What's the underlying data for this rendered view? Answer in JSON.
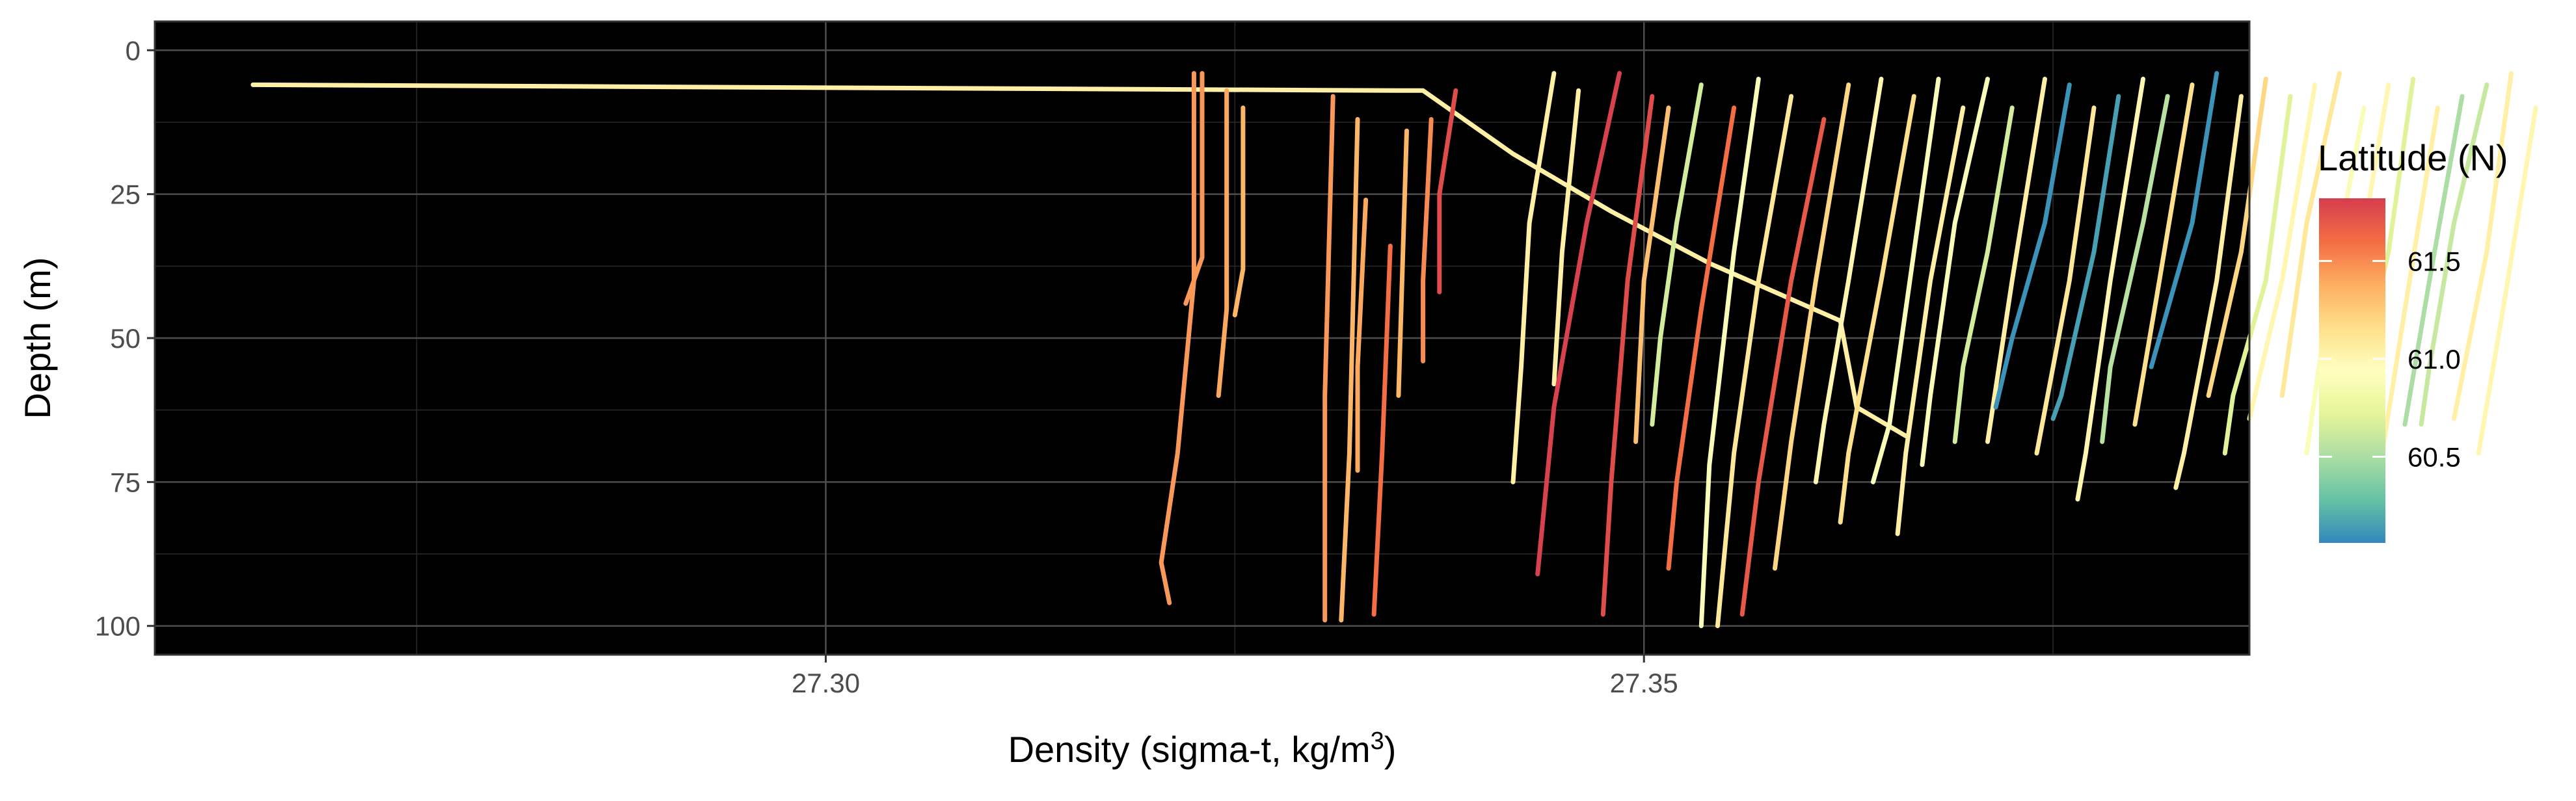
{
  "chart_data": {
    "type": "line",
    "xlabel": "Density (sigma-t, kg/m",
    "xlabel_superscript": "3",
    "xlabel_suffix": ")",
    "ylabel": "Depth (m)",
    "x_ticks": [
      "27.30",
      "27.35"
    ],
    "y_ticks": [
      "0",
      "25",
      "50",
      "75",
      "100"
    ],
    "xlim": [
      27.259,
      27.387
    ],
    "ylim": [
      105,
      -5
    ],
    "y_reversed": true,
    "background": "#000000",
    "grid": true,
    "legend": {
      "title": "Latitude (N)",
      "position": "right",
      "ticks": [
        "61.5",
        "61.0",
        "60.5"
      ],
      "tick_values": [
        61.5,
        61.0,
        60.5
      ],
      "range": [
        60.06,
        61.82
      ],
      "colors": [
        "#3288BD",
        "#66C2A5",
        "#ABDDA4",
        "#E6F598",
        "#FFFFBF",
        "#FEE08B",
        "#FDAE61",
        "#F46D43",
        "#D53E4F"
      ]
    },
    "series": [
      {
        "lat": 61.05,
        "points": [
          [
            27.265,
            6
          ],
          [
            27.335,
            7
          ],
          [
            27.3365,
            7
          ],
          [
            27.342,
            18
          ],
          [
            27.348,
            28
          ],
          [
            27.354,
            37
          ],
          [
            27.362,
            47
          ],
          [
            27.363,
            62
          ],
          [
            27.366,
            67
          ]
        ]
      },
      {
        "lat": 61.45,
        "points": [
          [
            27.3225,
            4
          ],
          [
            27.3225,
            40
          ],
          [
            27.3215,
            70
          ],
          [
            27.3205,
            89
          ],
          [
            27.321,
            96
          ]
        ]
      },
      {
        "lat": 61.45,
        "points": [
          [
            27.323,
            4
          ],
          [
            27.323,
            36
          ],
          [
            27.322,
            44
          ]
        ]
      },
      {
        "lat": 61.4,
        "points": [
          [
            27.3245,
            7
          ],
          [
            27.3245,
            45
          ],
          [
            27.324,
            60
          ]
        ]
      },
      {
        "lat": 61.35,
        "points": [
          [
            27.3255,
            10
          ],
          [
            27.3255,
            38
          ],
          [
            27.325,
            46
          ]
        ]
      },
      {
        "lat": 61.45,
        "points": [
          [
            27.331,
            8
          ],
          [
            27.3305,
            60
          ],
          [
            27.3305,
            99
          ]
        ]
      },
      {
        "lat": 61.35,
        "points": [
          [
            27.3325,
            12
          ],
          [
            27.332,
            70
          ],
          [
            27.3315,
            99
          ]
        ]
      },
      {
        "lat": 61.4,
        "points": [
          [
            27.333,
            26
          ],
          [
            27.3325,
            55
          ],
          [
            27.3325,
            73
          ]
        ]
      },
      {
        "lat": 61.6,
        "points": [
          [
            27.3345,
            34
          ],
          [
            27.334,
            70
          ],
          [
            27.3335,
            98
          ]
        ]
      },
      {
        "lat": 61.35,
        "points": [
          [
            27.3355,
            14
          ],
          [
            27.335,
            60
          ]
        ]
      },
      {
        "lat": 61.5,
        "points": [
          [
            27.337,
            12
          ],
          [
            27.3365,
            40
          ],
          [
            27.3365,
            54
          ]
        ]
      },
      {
        "lat": 61.75,
        "points": [
          [
            27.3385,
            7
          ],
          [
            27.3375,
            25
          ],
          [
            27.3375,
            42
          ]
        ]
      },
      {
        "lat": 61.05,
        "points": [
          [
            27.3445,
            4
          ],
          [
            27.343,
            30
          ],
          [
            27.3425,
            55
          ],
          [
            27.342,
            75
          ]
        ]
      },
      {
        "lat": 61.05,
        "points": [
          [
            27.346,
            7
          ],
          [
            27.345,
            35
          ],
          [
            27.3445,
            58
          ]
        ]
      },
      {
        "lat": 61.8,
        "points": [
          [
            27.3485,
            4
          ],
          [
            27.3465,
            30
          ],
          [
            27.3445,
            62
          ],
          [
            27.3435,
            91
          ]
        ]
      },
      {
        "lat": 61.75,
        "points": [
          [
            27.3505,
            8
          ],
          [
            27.349,
            40
          ],
          [
            27.348,
            75
          ],
          [
            27.3475,
            98
          ]
        ]
      },
      {
        "lat": 61.3,
        "points": [
          [
            27.3515,
            10
          ],
          [
            27.35,
            40
          ],
          [
            27.3495,
            68
          ]
        ]
      },
      {
        "lat": 60.65,
        "points": [
          [
            27.3535,
            6
          ],
          [
            27.352,
            30
          ],
          [
            27.351,
            50
          ],
          [
            27.3505,
            65
          ]
        ]
      },
      {
        "lat": 61.6,
        "points": [
          [
            27.3555,
            10
          ],
          [
            27.3535,
            45
          ],
          [
            27.352,
            75
          ],
          [
            27.3515,
            90
          ]
        ]
      },
      {
        "lat": 60.9,
        "points": [
          [
            27.357,
            5
          ],
          [
            27.3555,
            35
          ],
          [
            27.354,
            72
          ],
          [
            27.3535,
            100
          ]
        ]
      },
      {
        "lat": 61.1,
        "points": [
          [
            27.359,
            8
          ],
          [
            27.357,
            40
          ],
          [
            27.3555,
            70
          ],
          [
            27.3545,
            100
          ]
        ]
      },
      {
        "lat": 61.7,
        "points": [
          [
            27.361,
            12
          ],
          [
            27.359,
            40
          ],
          [
            27.357,
            75
          ],
          [
            27.356,
            98
          ]
        ]
      },
      {
        "lat": 61.2,
        "points": [
          [
            27.3625,
            6
          ],
          [
            27.3605,
            40
          ],
          [
            27.359,
            68
          ],
          [
            27.358,
            90
          ]
        ]
      },
      {
        "lat": 61.0,
        "points": [
          [
            27.3645,
            5
          ],
          [
            27.3625,
            40
          ],
          [
            27.361,
            65
          ],
          [
            27.3605,
            75
          ]
        ]
      },
      {
        "lat": 61.15,
        "points": [
          [
            27.3665,
            8
          ],
          [
            27.3645,
            40
          ],
          [
            27.3625,
            70
          ],
          [
            27.362,
            82
          ]
        ]
      },
      {
        "lat": 60.9,
        "points": [
          [
            27.368,
            5
          ],
          [
            27.3665,
            35
          ],
          [
            27.365,
            65
          ],
          [
            27.364,
            75
          ]
        ]
      },
      {
        "lat": 61.05,
        "points": [
          [
            27.3695,
            10
          ],
          [
            27.3675,
            40
          ],
          [
            27.366,
            70
          ],
          [
            27.3655,
            84
          ]
        ]
      },
      {
        "lat": 60.9,
        "points": [
          [
            27.371,
            5
          ],
          [
            27.369,
            30
          ],
          [
            27.3675,
            60
          ],
          [
            27.367,
            72
          ]
        ]
      },
      {
        "lat": 60.65,
        "points": [
          [
            27.3725,
            10
          ],
          [
            27.371,
            35
          ],
          [
            27.3695,
            55
          ],
          [
            27.369,
            68
          ]
        ]
      },
      {
        "lat": 61.05,
        "points": [
          [
            27.3745,
            5
          ],
          [
            27.3725,
            40
          ],
          [
            27.371,
            68
          ]
        ]
      },
      {
        "lat": 60.1,
        "points": [
          [
            27.376,
            6
          ],
          [
            27.3745,
            30
          ],
          [
            27.3725,
            50
          ],
          [
            27.3715,
            62
          ]
        ]
      },
      {
        "lat": 61.1,
        "points": [
          [
            27.3775,
            10
          ],
          [
            27.376,
            40
          ],
          [
            27.374,
            70
          ]
        ]
      },
      {
        "lat": 60.15,
        "points": [
          [
            27.379,
            8
          ],
          [
            27.3775,
            35
          ],
          [
            27.3755,
            60
          ],
          [
            27.375,
            64
          ]
        ]
      },
      {
        "lat": 61.0,
        "points": [
          [
            27.3805,
            5
          ],
          [
            27.3785,
            40
          ],
          [
            27.377,
            70
          ],
          [
            27.3765,
            78
          ]
        ]
      },
      {
        "lat": 60.55,
        "points": [
          [
            27.382,
            8
          ],
          [
            27.3805,
            30
          ],
          [
            27.3785,
            55
          ],
          [
            27.378,
            68
          ]
        ]
      },
      {
        "lat": 61.15,
        "points": [
          [
            27.3835,
            6
          ],
          [
            27.3815,
            40
          ],
          [
            27.38,
            65
          ]
        ]
      },
      {
        "lat": 60.1,
        "points": [
          [
            27.385,
            4
          ],
          [
            27.3835,
            30
          ],
          [
            27.3815,
            50
          ],
          [
            27.381,
            55
          ]
        ]
      },
      {
        "lat": 61.05,
        "points": [
          [
            27.3865,
            8
          ],
          [
            27.385,
            40
          ],
          [
            27.383,
            70
          ],
          [
            27.3825,
            76
          ]
        ]
      },
      {
        "lat": 61.2,
        "points": [
          [
            27.388,
            5
          ],
          [
            27.3865,
            35
          ],
          [
            27.3845,
            60
          ]
        ]
      },
      {
        "lat": 60.7,
        "points": [
          [
            27.3895,
            8
          ],
          [
            27.388,
            40
          ],
          [
            27.386,
            60
          ],
          [
            27.3855,
            70
          ]
        ]
      },
      {
        "lat": 61.0,
        "points": [
          [
            27.391,
            6
          ],
          [
            27.389,
            40
          ],
          [
            27.387,
            64
          ]
        ]
      },
      {
        "lat": 61.1,
        "points": [
          [
            27.3925,
            4
          ],
          [
            27.3905,
            30
          ],
          [
            27.389,
            60
          ]
        ]
      },
      {
        "lat": 60.9,
        "points": [
          [
            27.394,
            10
          ],
          [
            27.392,
            40
          ],
          [
            27.3905,
            70
          ]
        ]
      },
      {
        "lat": 61.0,
        "points": [
          [
            27.3955,
            6
          ],
          [
            27.3935,
            40
          ],
          [
            27.392,
            66
          ]
        ]
      },
      {
        "lat": 60.7,
        "points": [
          [
            27.397,
            5
          ],
          [
            27.3955,
            35
          ],
          [
            27.3935,
            60
          ],
          [
            27.393,
            66
          ]
        ]
      },
      {
        "lat": 61.05,
        "points": [
          [
            27.3985,
            10
          ],
          [
            27.3965,
            45
          ],
          [
            27.395,
            72
          ]
        ]
      },
      {
        "lat": 60.5,
        "points": [
          [
            27.4,
            8
          ],
          [
            27.398,
            40
          ],
          [
            27.3965,
            65
          ]
        ]
      },
      {
        "lat": 60.6,
        "points": [
          [
            27.4015,
            6
          ],
          [
            27.3995,
            30
          ],
          [
            27.398,
            55
          ],
          [
            27.3975,
            65
          ]
        ]
      },
      {
        "lat": 61.05,
        "points": [
          [
            27.403,
            4
          ],
          [
            27.4015,
            35
          ],
          [
            27.3995,
            64
          ]
        ]
      },
      {
        "lat": 61.0,
        "points": [
          [
            27.4045,
            10
          ],
          [
            27.4025,
            45
          ],
          [
            27.401,
            70
          ]
        ]
      }
    ]
  }
}
